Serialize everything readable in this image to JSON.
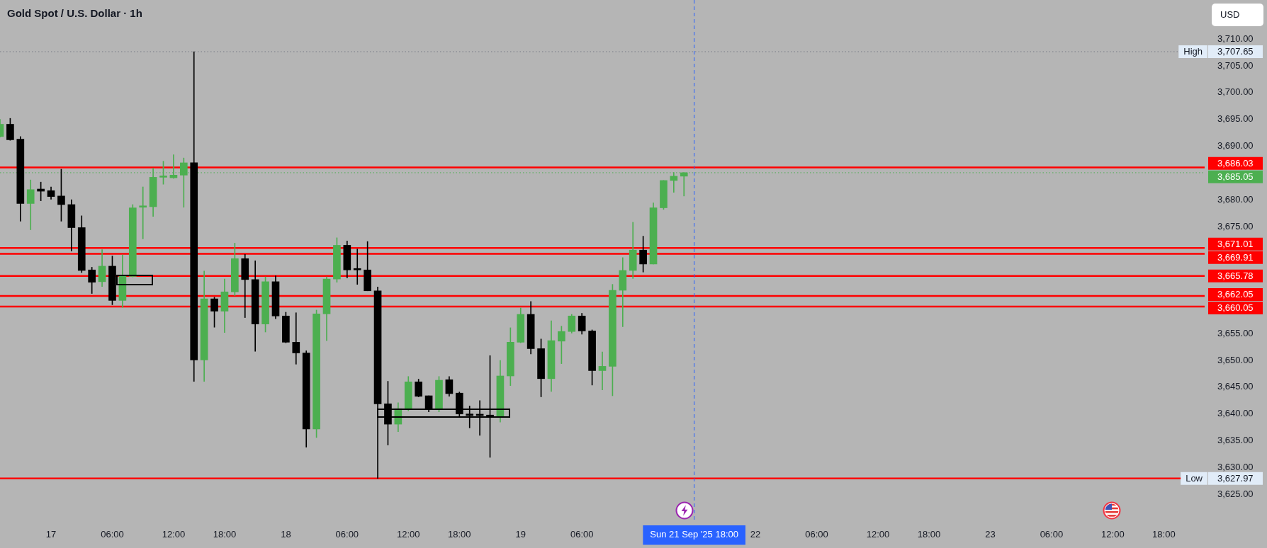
{
  "chart_data": {
    "type": "candlestick",
    "title": "Gold Spot / U.S. Dollar · 1h",
    "ylabel": "USD",
    "categories": [
      null,
      null,
      null,
      null,
      null,
      "17",
      null,
      null,
      null,
      null,
      null,
      "06:00",
      null,
      null,
      null,
      null,
      null,
      "12:00",
      null,
      null,
      null,
      null,
      "18:00",
      null,
      null,
      null,
      null,
      null,
      "18",
      null,
      null,
      null,
      null,
      null,
      "06:00",
      null,
      null,
      null,
      null,
      null,
      "12:00",
      null,
      null,
      null,
      null,
      "18:00",
      null,
      null,
      null,
      null,
      null,
      "19",
      null,
      null,
      null,
      null,
      null,
      "06:00",
      null,
      null,
      null,
      null,
      null,
      null,
      null,
      null,
      null,
      null,
      "Sun 21 Sep '25 18:00",
      null,
      null,
      null,
      null,
      null,
      "22",
      null,
      null,
      null,
      null,
      null,
      "06:00",
      null,
      null,
      null,
      null,
      null,
      "12:00",
      null,
      null,
      null,
      null,
      "18:00",
      null,
      null,
      null,
      null,
      null,
      "23",
      null,
      null,
      null,
      null,
      null,
      "06:00",
      null,
      null,
      null,
      null,
      null,
      "12:00",
      null,
      null,
      null,
      null,
      "18:00",
      null,
      null,
      null,
      null
    ],
    "ohlc": [
      [
        3691.8,
        3695.0,
        3691.7,
        3694.1
      ],
      [
        3694.1,
        3695.2,
        3691.1,
        3691.2
      ],
      [
        3691.3,
        3691.8,
        3676.0,
        3679.3
      ],
      [
        3679.3,
        3683.7,
        3674.4,
        3681.9
      ],
      [
        3682.0,
        3683.3,
        3679.8,
        3681.6
      ],
      [
        3681.7,
        3682.4,
        3680.1,
        3680.6
      ],
      [
        3680.7,
        3685.7,
        3676.0,
        3679.1
      ],
      [
        3679.1,
        3680.0,
        3670.4,
        3674.8
      ],
      [
        3674.8,
        3677.0,
        3666.4,
        3666.8
      ],
      [
        3666.9,
        3667.4,
        3662.5,
        3664.6
      ],
      [
        3664.7,
        3670.7,
        3663.8,
        3667.6
      ],
      [
        3667.6,
        3669.5,
        3660.4,
        3661.2
      ],
      [
        3661.2,
        3669.7,
        3659.9,
        3665.7
      ],
      [
        3665.7,
        3679.1,
        3665.6,
        3678.5
      ],
      [
        3678.6,
        3682.4,
        3672.7,
        3678.7
      ],
      [
        3678.7,
        3685.9,
        3676.9,
        3684.2
      ],
      [
        3684.2,
        3687.2,
        3682.9,
        3684.3
      ],
      [
        3684.1,
        3688.4,
        3684.0,
        3684.6
      ],
      [
        3684.6,
        3687.8,
        3678.6,
        3686.9
      ],
      [
        3686.9,
        3707.65,
        3646.1,
        3650.1
      ],
      [
        3650.1,
        3666.7,
        3646.1,
        3661.5
      ],
      [
        3661.5,
        3661.8,
        3656.2,
        3659.2
      ],
      [
        3659.2,
        3665.2,
        3655.2,
        3662.8
      ],
      [
        3662.8,
        3671.9,
        3662.1,
        3669.0
      ],
      [
        3669.0,
        3669.8,
        3658.0,
        3665.1
      ],
      [
        3665.1,
        3668.6,
        3651.7,
        3656.8
      ],
      [
        3656.8,
        3665.6,
        3655.3,
        3664.7
      ],
      [
        3664.7,
        3665.8,
        3657.8,
        3658.3
      ],
      [
        3658.3,
        3659.0,
        3653.3,
        3653.4
      ],
      [
        3653.4,
        3658.9,
        3649.3,
        3651.4
      ],
      [
        3651.4,
        3651.8,
        3633.8,
        3637.2
      ],
      [
        3637.2,
        3659.4,
        3635.6,
        3658.7
      ],
      [
        3658.7,
        3665.6,
        3653.7,
        3665.2
      ],
      [
        3665.2,
        3672.9,
        3664.6,
        3671.5
      ],
      [
        3671.5,
        3672.3,
        3665.4,
        3666.9
      ],
      [
        3667.0,
        3670.8,
        3664.2,
        3666.9
      ],
      [
        3666.9,
        3672.2,
        3663.0,
        3663.0
      ],
      [
        3663.0,
        3663.7,
        3627.97,
        3641.9
      ],
      [
        3641.9,
        3646.1,
        3634.2,
        3638.1
      ],
      [
        3638.1,
        3642.1,
        3636.7,
        3641.0
      ],
      [
        3641.0,
        3647.0,
        3640.6,
        3646.0
      ],
      [
        3646.0,
        3646.5,
        3643.2,
        3643.3
      ],
      [
        3643.4,
        3643.4,
        3640.4,
        3641.0
      ],
      [
        3641.0,
        3647.0,
        3640.4,
        3646.3
      ],
      [
        3646.4,
        3647.0,
        3643.3,
        3643.8
      ],
      [
        3643.9,
        3644.1,
        3639.4,
        3640.0
      ],
      [
        3640.0,
        3641.5,
        3637.4,
        3639.7
      ],
      [
        3639.8,
        3642.5,
        3636.0,
        3639.7
      ],
      [
        3639.8,
        3650.9,
        3631.9,
        3639.4
      ],
      [
        3639.5,
        3650.0,
        3638.5,
        3647.1
      ],
      [
        3647.1,
        3656.1,
        3645.3,
        3653.4
      ],
      [
        3653.4,
        3659.8,
        3653.3,
        3658.6
      ],
      [
        3658.6,
        3661.0,
        3651.2,
        3652.2
      ],
      [
        3652.2,
        3654.0,
        3643.2,
        3646.6
      ],
      [
        3646.6,
        3657.4,
        3644.2,
        3653.7
      ],
      [
        3653.6,
        3656.4,
        3649.4,
        3655.4
      ],
      [
        3655.4,
        3658.6,
        3655.1,
        3658.3
      ],
      [
        3658.3,
        3658.8,
        3654.9,
        3655.5
      ],
      [
        3655.5,
        3655.7,
        3645.4,
        3648.1
      ],
      [
        3648.1,
        3651.6,
        3644.5,
        3648.9
      ],
      [
        3648.9,
        3664.2,
        3643.4,
        3663.1
      ],
      [
        3663.1,
        3669.2,
        3656.3,
        3666.8
      ],
      [
        3666.8,
        3675.8,
        3665.3,
        3670.6
      ],
      [
        3670.6,
        3673.2,
        3666.5,
        3668.0
      ],
      [
        3668.0,
        3679.4,
        3668.0,
        3678.5
      ],
      [
        3678.5,
        3683.6,
        3678.2,
        3683.6
      ],
      [
        3683.6,
        3685.1,
        3681.4,
        3684.4
      ],
      [
        3684.4,
        3685.1,
        3680.7,
        3685.05
      ],
      null,
      null,
      null,
      null,
      null,
      null,
      null,
      null,
      null,
      null,
      null,
      null,
      null,
      null,
      null,
      null,
      null,
      null,
      null,
      null,
      null,
      null,
      null,
      null,
      null,
      null,
      null,
      null,
      null,
      null,
      null,
      null,
      null,
      null,
      null,
      null,
      null,
      null,
      null,
      null,
      null,
      null,
      null,
      null,
      null,
      null,
      null,
      null,
      null,
      null,
      null
    ],
    "colors": [
      "#4caf50",
      "#000000",
      "#000000",
      "#4caf50",
      "#000000",
      "#000000",
      "#000000",
      "#000000",
      "#000000",
      "#000000",
      "#4caf50",
      "#000000",
      "#4caf50",
      "#4caf50",
      "#4caf50",
      "#4caf50",
      "#4caf50",
      "#4caf50",
      "#4caf50",
      "#000000",
      "#4caf50",
      "#000000",
      "#4caf50",
      "#4caf50",
      "#000000",
      "#000000",
      "#4caf50",
      "#000000",
      "#000000",
      "#000000",
      "#000000",
      "#4caf50",
      "#4caf50",
      "#4caf50",
      "#000000",
      "#000000",
      "#000000",
      "#000000",
      "#000000",
      "#4caf50",
      "#4caf50",
      "#000000",
      "#000000",
      "#4caf50",
      "#000000",
      "#000000",
      "#000000",
      "#000000",
      "#000000",
      "#4caf50",
      "#4caf50",
      "#4caf50",
      "#000000",
      "#000000",
      "#4caf50",
      "#4caf50",
      "#4caf50",
      "#000000",
      "#000000",
      "#4caf50",
      "#4caf50",
      "#4caf50",
      "#4caf50",
      "#000000",
      "#4caf50",
      "#4caf50",
      "#4caf50",
      "#4caf50",
      null,
      null,
      null,
      null,
      null,
      null,
      null,
      null,
      null,
      null,
      null,
      null,
      null,
      null,
      null,
      null,
      null,
      null,
      null,
      null,
      null,
      null,
      null,
      null,
      null,
      null,
      null,
      null,
      null,
      null,
      null,
      null,
      null,
      null,
      null,
      null,
      null,
      null,
      null,
      null,
      null,
      null,
      null,
      null,
      null,
      null,
      null,
      null,
      null,
      null,
      null
    ],
    "ylim": [
      3620,
      3717.3
    ],
    "yticks": [
      {
        "value": 3625,
        "label": "3,625.00"
      },
      {
        "value": 3630,
        "label": "3,630.00"
      },
      {
        "value": 3635,
        "label": "3,635.00"
      },
      {
        "value": 3640,
        "label": "3,640.00"
      },
      {
        "value": 3645,
        "label": "3,645.00"
      },
      {
        "value": 3650,
        "label": "3,650.00"
      },
      {
        "value": 3655,
        "label": "3,655.00"
      },
      {
        "value": 3675,
        "label": "3,675.00"
      },
      {
        "value": 3680,
        "label": "3,680.00"
      },
      {
        "value": 3690,
        "label": "3,690.00"
      },
      {
        "value": 3695,
        "label": "3,695.00"
      },
      {
        "value": 3700,
        "label": "3,700.00"
      },
      {
        "value": 3705,
        "label": "3,705.00"
      },
      {
        "value": 3710,
        "label": "3,710.00"
      }
    ],
    "ref_lines": [
      {
        "axis": "y",
        "value": 3707.65,
        "label": "3,707.65",
        "color": "#787b86",
        "line_style": "dotted"
      },
      {
        "axis": "y",
        "value": 3686.03,
        "label": "3,686.03",
        "color": "#ff0000"
      },
      {
        "axis": "y",
        "value": 3685.05,
        "label": "3,685.05",
        "color": "#4caf50",
        "line_style": "dotted"
      },
      {
        "axis": "y",
        "value": 3671.01,
        "label": "3,671.01",
        "color": "#ff0000"
      },
      {
        "axis": "y",
        "value": 3669.91,
        "label": "3,669.91",
        "color": "#ff0000"
      },
      {
        "axis": "y",
        "value": 3665.78,
        "label": "3,665.78",
        "color": "#ff0000"
      },
      {
        "axis": "y",
        "value": 3662.05,
        "label": "3,662.05",
        "color": "#ff0000"
      },
      {
        "axis": "y",
        "value": 3660.05,
        "label": "3,660.05",
        "color": "#ff0000"
      },
      {
        "axis": "y",
        "value": 3627.97,
        "label": "3,627.97",
        "color": "#ff0000"
      },
      {
        "axis": "x",
        "value": "Sun 21 Sep '25 18:00",
        "color": "#2962ff",
        "line_style": "dashed"
      }
    ],
    "annotations": [
      {
        "text": "High",
        "y": 3707.65
      },
      {
        "text": "Low",
        "y": 3627.97
      }
    ]
  }
}
